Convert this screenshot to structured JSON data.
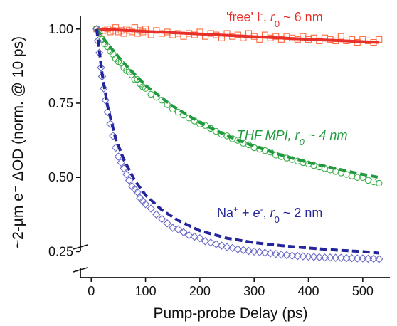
{
  "chart_data": {
    "type": "scatter",
    "title": "",
    "xlabel": "Pump-probe Delay (ps)",
    "ylabel": "~2-µm e⁻ ΔOD (norm. @ 10 ps)",
    "xlim": [
      -20,
      550
    ],
    "ylim": [
      0.215,
      1.045
    ],
    "x_ticks": [
      "0",
      "100",
      "200",
      "300",
      "400",
      "500"
    ],
    "y_ticks": [
      "0.25",
      "0.50",
      "0.75",
      "1.00"
    ],
    "axis_break": "y-axis below 0.25",
    "grid": false,
    "legend": "inline labels",
    "series": [
      {
        "name": "'free' I⁻, r₀ ~ 6 nm",
        "label_parts": [
          "'free' I",
          "-",
          ", ",
          "r",
          "0",
          " ~ 6 nm"
        ],
        "marker": "square",
        "color": "#ff6a3d",
        "fit_color": "#e8302a",
        "fit_style": "solid",
        "points": [
          [
            10,
            1.0
          ],
          [
            15,
            0.99
          ],
          [
            20,
            0.985
          ],
          [
            25,
            0.995
          ],
          [
            30,
            1.0
          ],
          [
            35,
            0.99
          ],
          [
            40,
            0.995
          ],
          [
            45,
            1.005
          ],
          [
            50,
            0.99
          ],
          [
            55,
            0.995
          ],
          [
            60,
            0.985
          ],
          [
            65,
            1.0
          ],
          [
            70,
            0.995
          ],
          [
            75,
            0.99
          ],
          [
            80,
            1.005
          ],
          [
            85,
            0.985
          ],
          [
            90,
            0.995
          ],
          [
            95,
            0.99
          ],
          [
            100,
            1.0
          ],
          [
            110,
            0.98
          ],
          [
            120,
            0.995
          ],
          [
            130,
            0.985
          ],
          [
            140,
            0.99
          ],
          [
            150,
            0.98
          ],
          [
            160,
            0.985
          ],
          [
            170,
            0.975
          ],
          [
            180,
            0.985
          ],
          [
            190,
            0.98
          ],
          [
            200,
            0.99
          ],
          [
            210,
            0.975
          ],
          [
            220,
            0.985
          ],
          [
            230,
            0.98
          ],
          [
            240,
            0.97
          ],
          [
            250,
            0.985
          ],
          [
            260,
            0.975
          ],
          [
            270,
            0.98
          ],
          [
            280,
            0.97
          ],
          [
            290,
            0.985
          ],
          [
            300,
            0.975
          ],
          [
            310,
            0.965
          ],
          [
            320,
            0.98
          ],
          [
            330,
            0.97
          ],
          [
            340,
            0.975
          ],
          [
            350,
            0.965
          ],
          [
            360,
            0.975
          ],
          [
            370,
            0.97
          ],
          [
            380,
            0.965
          ],
          [
            390,
            0.975
          ],
          [
            400,
            0.965
          ],
          [
            410,
            0.97
          ],
          [
            420,
            0.96
          ],
          [
            430,
            0.97
          ],
          [
            440,
            0.965
          ],
          [
            450,
            0.96
          ],
          [
            460,
            0.975
          ],
          [
            470,
            0.96
          ],
          [
            480,
            0.965
          ],
          [
            490,
            0.955
          ],
          [
            500,
            0.965
          ],
          [
            510,
            0.96
          ],
          [
            520,
            0.955
          ],
          [
            530,
            0.965
          ]
        ],
        "fit": [
          [
            10,
            1.0
          ],
          [
            100,
            0.992
          ],
          [
            200,
            0.983
          ],
          [
            300,
            0.974
          ],
          [
            400,
            0.965
          ],
          [
            530,
            0.955
          ]
        ]
      },
      {
        "name": "THF MPI, r₀ ~ 4 nm",
        "label_parts": [
          "THF MPI, ",
          "r",
          "0",
          " ~ 4 nm"
        ],
        "marker": "circle",
        "color": "#3cb04a",
        "fit_color": "#1f9a3f",
        "fit_style": "dashed",
        "points": [
          [
            10,
            1.0
          ],
          [
            15,
            0.985
          ],
          [
            20,
            0.965
          ],
          [
            25,
            0.95
          ],
          [
            30,
            0.94
          ],
          [
            35,
            0.925
          ],
          [
            40,
            0.915
          ],
          [
            45,
            0.9
          ],
          [
            50,
            0.89
          ],
          [
            55,
            0.885
          ],
          [
            60,
            0.87
          ],
          [
            65,
            0.86
          ],
          [
            70,
            0.855
          ],
          [
            75,
            0.845
          ],
          [
            80,
            0.83
          ],
          [
            85,
            0.83
          ],
          [
            90,
            0.815
          ],
          [
            95,
            0.805
          ],
          [
            100,
            0.8
          ],
          [
            110,
            0.78
          ],
          [
            120,
            0.77
          ],
          [
            130,
            0.76
          ],
          [
            140,
            0.745
          ],
          [
            150,
            0.73
          ],
          [
            160,
            0.72
          ],
          [
            170,
            0.71
          ],
          [
            180,
            0.7
          ],
          [
            190,
            0.69
          ],
          [
            200,
            0.68
          ],
          [
            210,
            0.675
          ],
          [
            220,
            0.665
          ],
          [
            230,
            0.655
          ],
          [
            240,
            0.645
          ],
          [
            250,
            0.64
          ],
          [
            260,
            0.63
          ],
          [
            270,
            0.625
          ],
          [
            280,
            0.615
          ],
          [
            290,
            0.61
          ],
          [
            300,
            0.6
          ],
          [
            310,
            0.595
          ],
          [
            320,
            0.59
          ],
          [
            330,
            0.585
          ],
          [
            340,
            0.575
          ],
          [
            350,
            0.57
          ],
          [
            360,
            0.565
          ],
          [
            370,
            0.56
          ],
          [
            380,
            0.555
          ],
          [
            390,
            0.55
          ],
          [
            400,
            0.545
          ],
          [
            410,
            0.54
          ],
          [
            420,
            0.535
          ],
          [
            430,
            0.53
          ],
          [
            440,
            0.525
          ],
          [
            450,
            0.52
          ],
          [
            460,
            0.515
          ],
          [
            470,
            0.51
          ],
          [
            480,
            0.505
          ],
          [
            490,
            0.5
          ],
          [
            500,
            0.5
          ],
          [
            510,
            0.49
          ],
          [
            520,
            0.485
          ],
          [
            530,
            0.48
          ]
        ],
        "fit": [
          [
            10,
            1.0
          ],
          [
            30,
            0.95
          ],
          [
            60,
            0.885
          ],
          [
            100,
            0.81
          ],
          [
            150,
            0.74
          ],
          [
            200,
            0.685
          ],
          [
            250,
            0.64
          ],
          [
            300,
            0.605
          ],
          [
            350,
            0.575
          ],
          [
            400,
            0.55
          ],
          [
            450,
            0.53
          ],
          [
            500,
            0.51
          ],
          [
            530,
            0.5
          ]
        ]
      },
      {
        "name": "Na⁺ + e⁻, r₀ ~ 2 nm",
        "label_parts": [
          "Na",
          "+",
          " + ",
          "e",
          "-",
          ", ",
          "r",
          "0",
          " ~ 2 nm"
        ],
        "marker": "diamond",
        "color": "#6a6ac8",
        "fit_color": "#23259a",
        "fit_style": "dashed",
        "points": [
          [
            10,
            1.0
          ],
          [
            12,
            0.96
          ],
          [
            15,
            0.92
          ],
          [
            18,
            0.87
          ],
          [
            20,
            0.84
          ],
          [
            23,
            0.8
          ],
          [
            26,
            0.76
          ],
          [
            30,
            0.72
          ],
          [
            35,
            0.68
          ],
          [
            40,
            0.64
          ],
          [
            45,
            0.6
          ],
          [
            50,
            0.57
          ],
          [
            55,
            0.55
          ],
          [
            60,
            0.53
          ],
          [
            65,
            0.51
          ],
          [
            70,
            0.49
          ],
          [
            75,
            0.47
          ],
          [
            80,
            0.46
          ],
          [
            85,
            0.45
          ],
          [
            90,
            0.43
          ],
          [
            95,
            0.42
          ],
          [
            100,
            0.41
          ],
          [
            110,
            0.395
          ],
          [
            120,
            0.375
          ],
          [
            130,
            0.36
          ],
          [
            140,
            0.345
          ],
          [
            150,
            0.33
          ],
          [
            160,
            0.325
          ],
          [
            170,
            0.315
          ],
          [
            180,
            0.305
          ],
          [
            190,
            0.3
          ],
          [
            200,
            0.295
          ],
          [
            210,
            0.285
          ],
          [
            220,
            0.28
          ],
          [
            230,
            0.275
          ],
          [
            240,
            0.27
          ],
          [
            250,
            0.265
          ],
          [
            260,
            0.262
          ],
          [
            270,
            0.258
          ],
          [
            280,
            0.255
          ],
          [
            290,
            0.252
          ],
          [
            300,
            0.25
          ],
          [
            310,
            0.248
          ],
          [
            320,
            0.246
          ],
          [
            330,
            0.244
          ],
          [
            340,
            0.242
          ],
          [
            350,
            0.24
          ],
          [
            360,
            0.238
          ],
          [
            370,
            0.236
          ],
          [
            380,
            0.235
          ],
          [
            390,
            0.234
          ],
          [
            400,
            0.233
          ],
          [
            410,
            0.232
          ],
          [
            420,
            0.231
          ],
          [
            430,
            0.23
          ],
          [
            440,
            0.23
          ],
          [
            450,
            0.229
          ],
          [
            460,
            0.229
          ],
          [
            470,
            0.228
          ],
          [
            480,
            0.228
          ],
          [
            490,
            0.227
          ],
          [
            500,
            0.227
          ],
          [
            510,
            0.226
          ],
          [
            520,
            0.226
          ],
          [
            530,
            0.225
          ]
        ],
        "fit": [
          [
            10,
            1.0
          ],
          [
            20,
            0.85
          ],
          [
            30,
            0.74
          ],
          [
            45,
            0.63
          ],
          [
            60,
            0.56
          ],
          [
            80,
            0.49
          ],
          [
            100,
            0.44
          ],
          [
            130,
            0.39
          ],
          [
            160,
            0.355
          ],
          [
            200,
            0.32
          ],
          [
            250,
            0.295
          ],
          [
            300,
            0.28
          ],
          [
            350,
            0.27
          ],
          [
            400,
            0.262
          ],
          [
            450,
            0.255
          ],
          [
            500,
            0.25
          ],
          [
            530,
            0.245
          ]
        ]
      }
    ]
  }
}
